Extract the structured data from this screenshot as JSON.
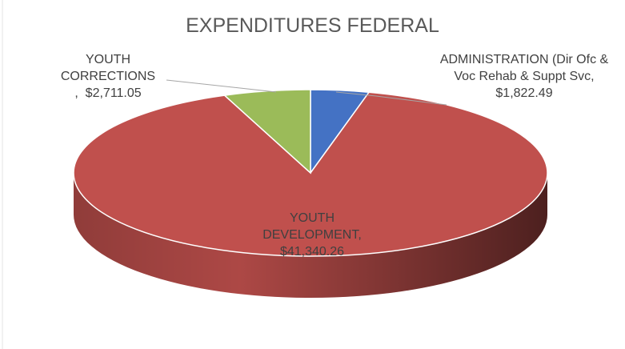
{
  "chart_data": {
    "type": "pie",
    "title": "EXPENDITURES FEDERAL",
    "categories": [
      "ADMINISTRATION (Dir Ofc & Voc Rehab & Suppt Svc",
      "YOUTH DEVELOPMENT",
      "YOUTH CORRECTIONS"
    ],
    "values": [
      1822.49,
      41340.26,
      2711.05
    ],
    "value_labels": [
      "$1,822.49",
      "$41,340.26",
      "$2,711.05"
    ],
    "label_separator": ",",
    "colors": [
      "#4472c4",
      "#c0504d",
      "#9bbb59"
    ]
  }
}
